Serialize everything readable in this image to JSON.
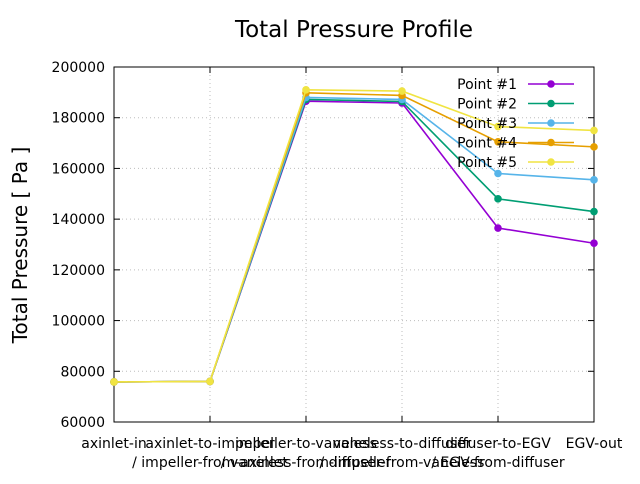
{
  "chart_data": {
    "type": "line",
    "title": "Total Pressure Profile",
    "ylabel": "Total Pressure [ Pa ]",
    "xlabel": "",
    "ylim": [
      60000,
      200000
    ],
    "yticks": [
      "60000",
      "80000",
      "100000",
      "120000",
      "140000",
      "160000",
      "180000",
      "200000"
    ],
    "categories": [
      "axinlet-in",
      "axinlet-to-impeller / impeller-from-axinlet",
      "impeller-to-vaneless / vaneless-from-impeller",
      "vaneless-to-diffuser / diffuser-from-vaneless",
      "diffuser-to-EGV / EGV-from-diffuser",
      "EGV-out"
    ],
    "xtick_rows": [
      [
        "axinlet-in",
        "axinlet-to-impeller",
        "impeller-to-vaneless",
        "vaneless-to-diffuser",
        "diffuser-to-EGV",
        "EGV-out"
      ],
      [
        "",
        "/ impeller-from-axinlet",
        "/ vaneless-from-impeller",
        "/ diffuser-from-vaneless",
        "/ EGV-from-diffuser",
        ""
      ]
    ],
    "grid": true,
    "legend_position": "top-right",
    "series": [
      {
        "name": "Point #1",
        "color": "#9400d3",
        "values": [
          75800,
          76000,
          186500,
          185800,
          136500,
          130500
        ]
      },
      {
        "name": "Point #2",
        "color": "#009e73",
        "values": [
          75800,
          76000,
          187200,
          186400,
          148000,
          143000
        ]
      },
      {
        "name": "Point #3",
        "color": "#56b4e9",
        "values": [
          75800,
          76000,
          188000,
          187200,
          158000,
          155500
        ]
      },
      {
        "name": "Point #4",
        "color": "#e69f00",
        "values": [
          75800,
          76000,
          189800,
          188800,
          170500,
          168500
        ]
      },
      {
        "name": "Point #5",
        "color": "#f0e442",
        "values": [
          75800,
          76000,
          191000,
          190500,
          176500,
          175000
        ]
      }
    ]
  }
}
